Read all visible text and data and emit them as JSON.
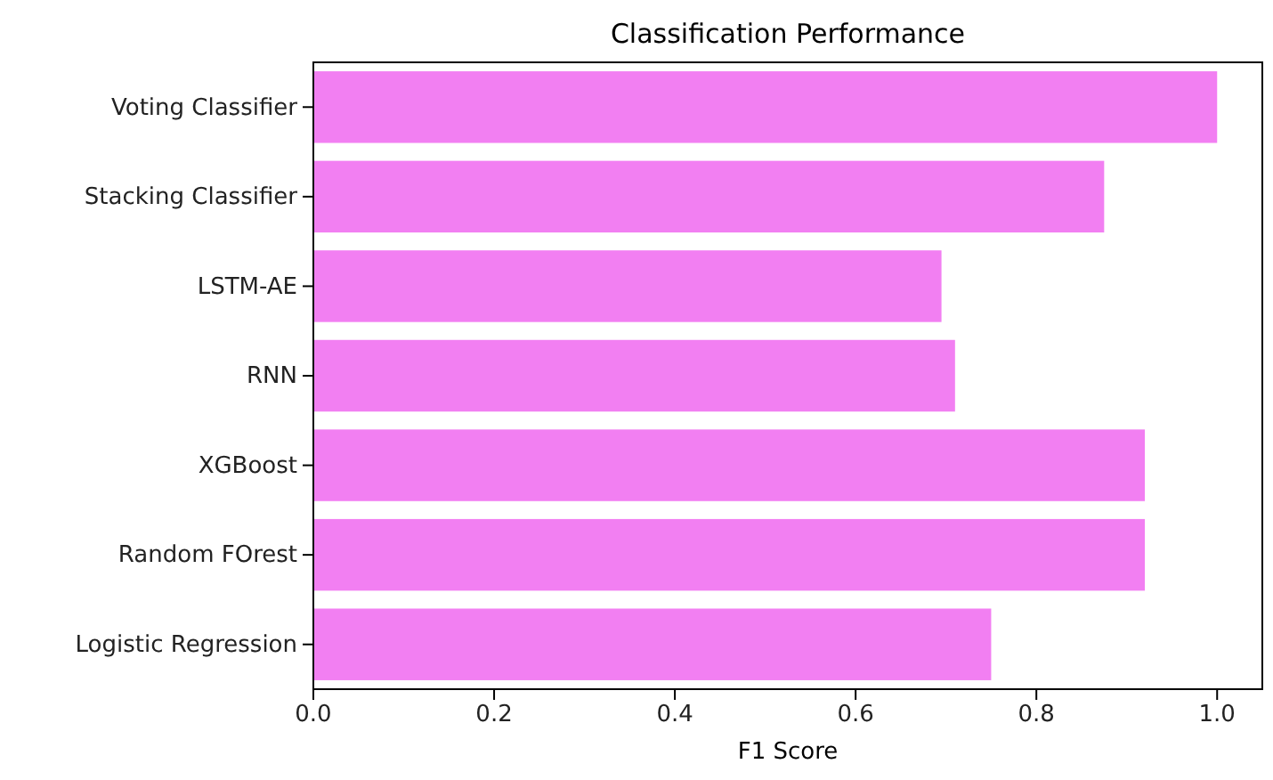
{
  "chart_data": {
    "type": "bar",
    "orientation": "horizontal",
    "title": "Classification Performance",
    "xlabel": "F1 Score",
    "categories": [
      "Voting Classifier",
      "Stacking Classifier",
      "LSTM-AE",
      "RNN",
      "XGBoost",
      "Random FOrest",
      "Logistic Regression"
    ],
    "values": [
      1.0,
      0.875,
      0.695,
      0.71,
      0.92,
      0.92,
      0.75
    ],
    "color": "#f27ff2",
    "xlim": [
      0,
      1.05
    ],
    "xticks": [
      {
        "value": 0,
        "label": "0.0"
      },
      {
        "value": 0.2,
        "label": "0.2"
      },
      {
        "value": 0.4,
        "label": "0.4"
      },
      {
        "value": 0.6,
        "label": "0.6"
      },
      {
        "value": 0.8,
        "label": "0.8"
      },
      {
        "value": 1,
        "label": "1.0"
      }
    ],
    "grid": false
  }
}
